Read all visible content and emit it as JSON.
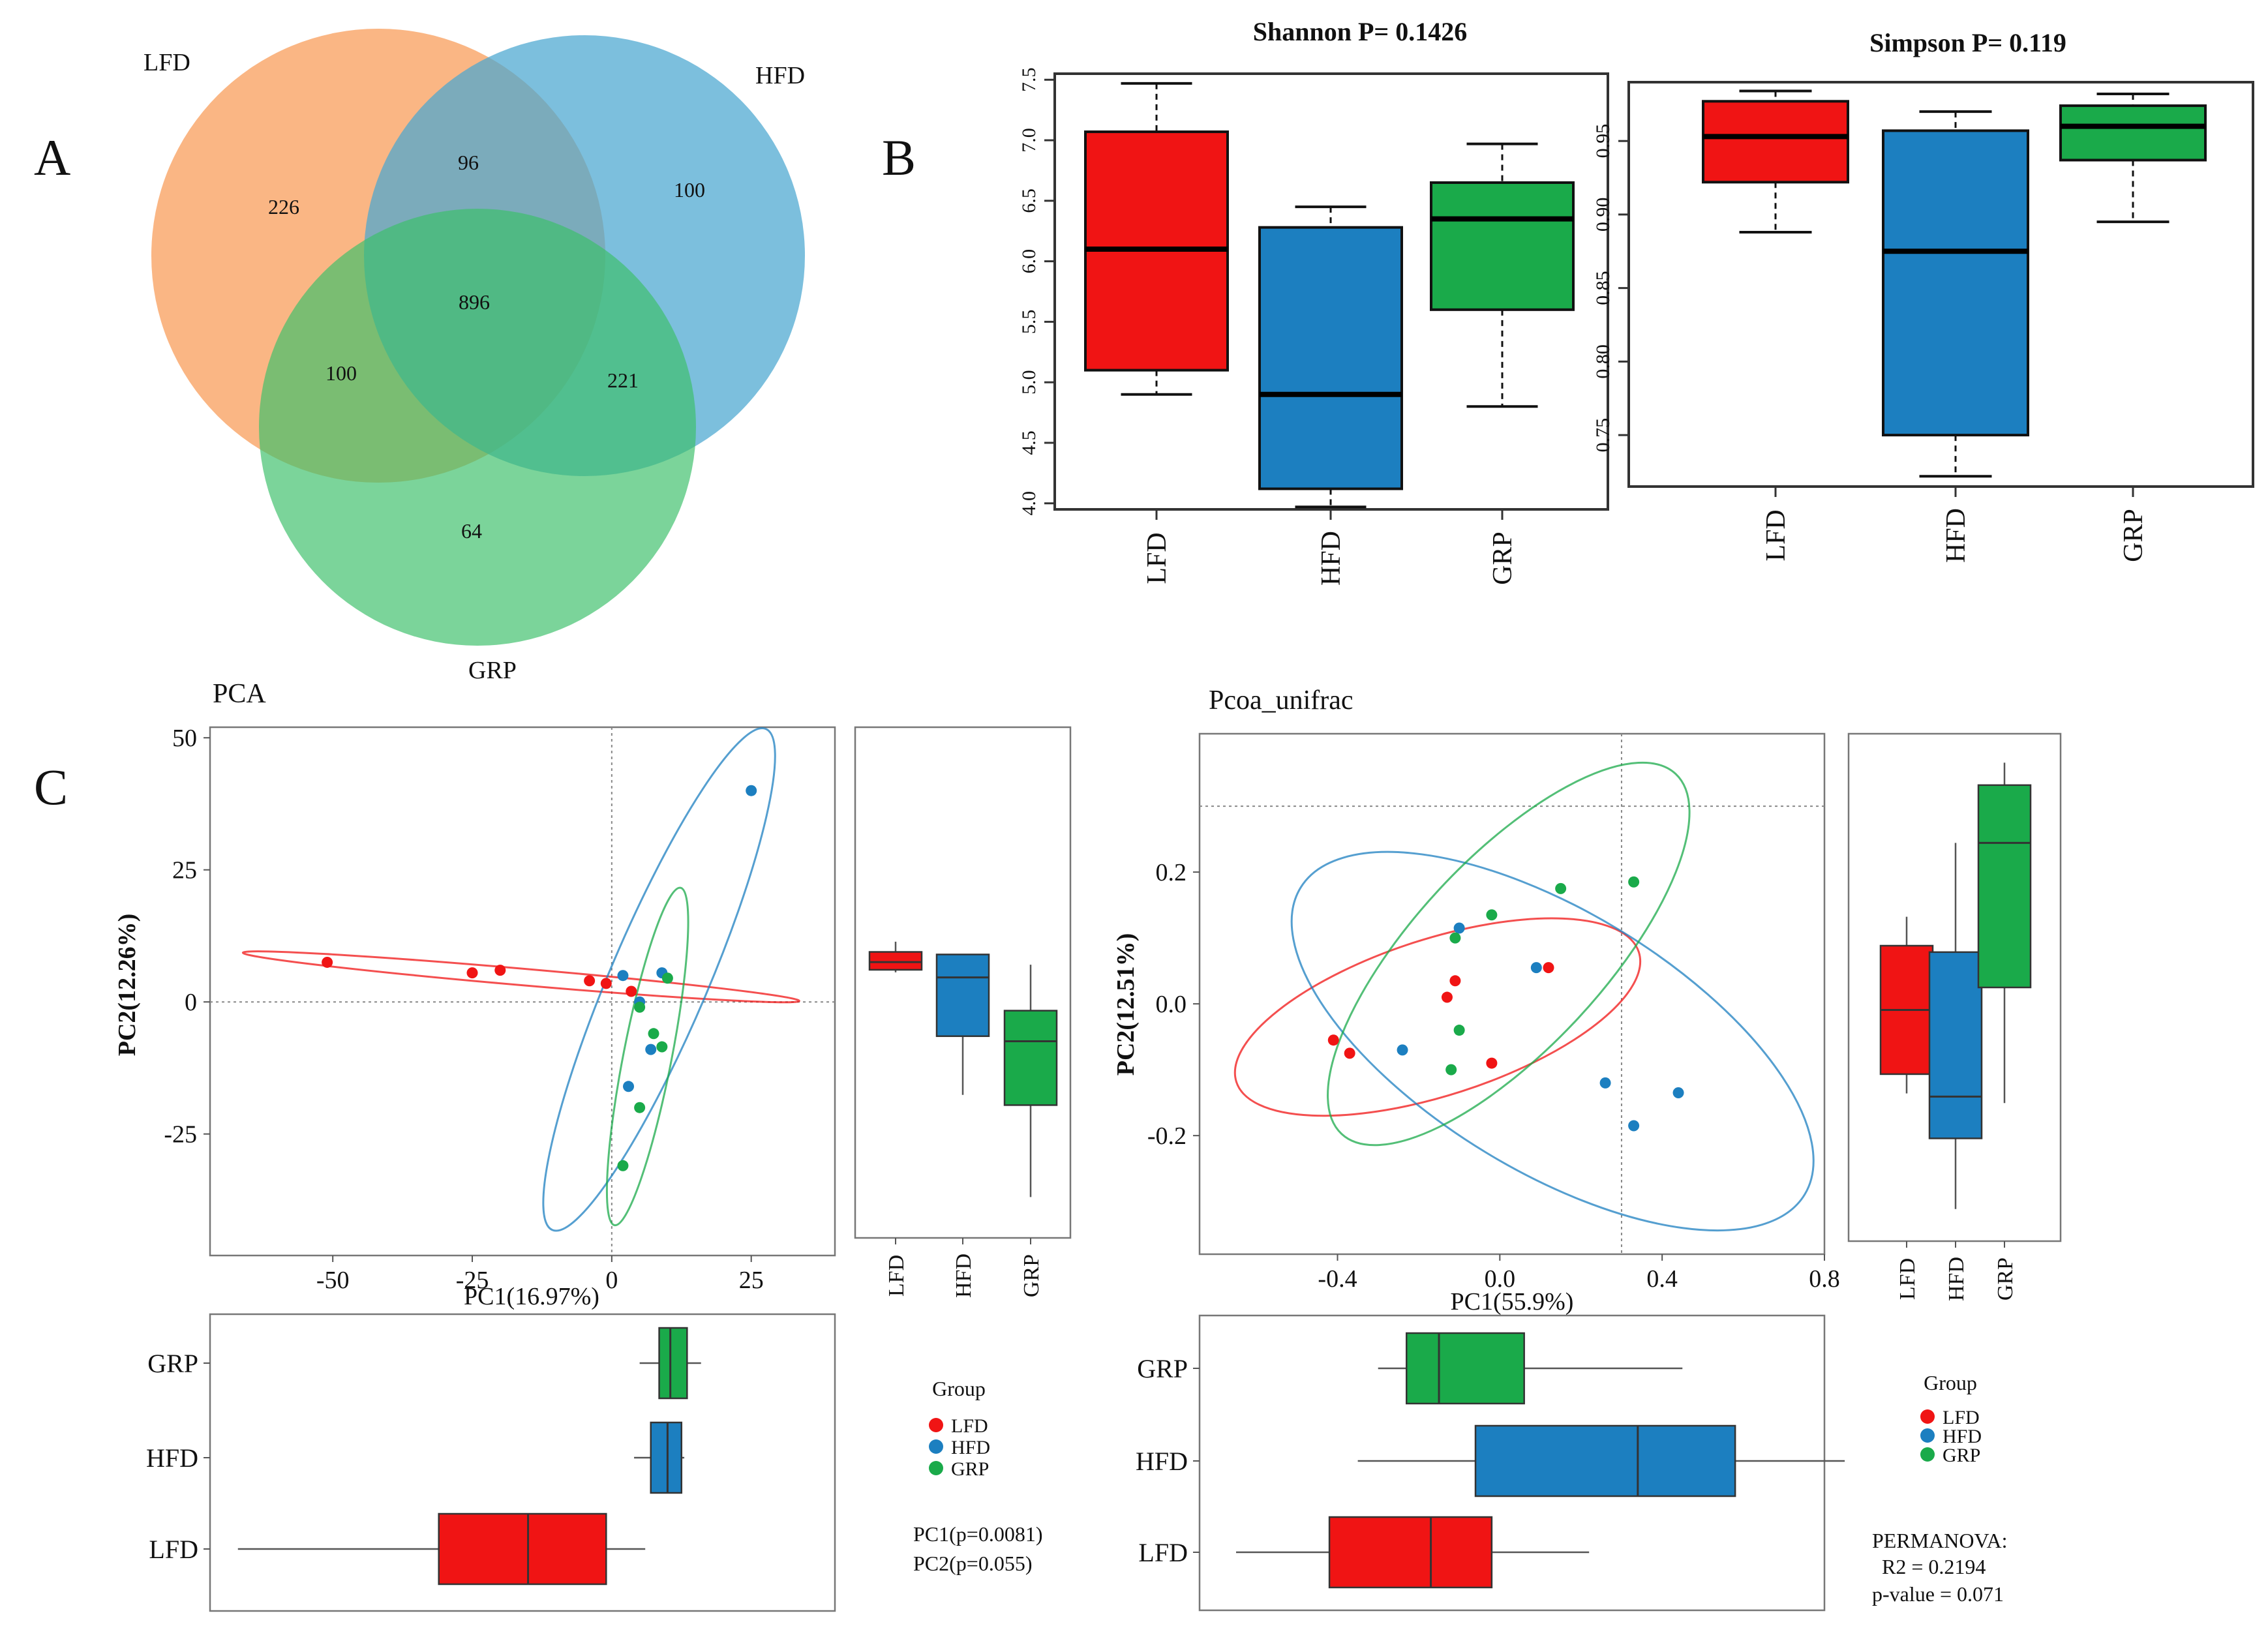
{
  "panel_labels": {
    "A": "A",
    "B": "B",
    "C": "C"
  },
  "colors": {
    "LFD": "#f01414",
    "HFD": "#1c7fc0",
    "GRP": "#1aaa4a",
    "venn_lfd": "#f8a262",
    "venn_hfd": "#4aa6d0",
    "venn_grp": "#3cc06a"
  },
  "chart_data": [
    {
      "type": "venn",
      "sets": [
        "LFD",
        "HFD",
        "GRP"
      ],
      "regions": {
        "LFD_only": "226",
        "HFD_only": "100",
        "GRP_only": "64",
        "LFD_HFD": "96",
        "LFD_GRP": "100",
        "HFD_GRP": "221",
        "all": "896"
      }
    },
    {
      "type": "boxplot",
      "title": "Shannon  P= 0.1426",
      "categories": [
        "LFD",
        "HFD",
        "GRP"
      ],
      "yticks": [
        "4.0",
        "4.5",
        "5.0",
        "5.5",
        "6.0",
        "6.5",
        "7.0",
        "7.5"
      ],
      "ylim": [
        3.95,
        7.55
      ],
      "boxes": [
        {
          "name": "LFD",
          "min": 4.9,
          "q1": 5.1,
          "median": 6.1,
          "q3": 7.07,
          "max": 7.47
        },
        {
          "name": "HFD",
          "min": 3.97,
          "q1": 4.12,
          "median": 4.9,
          "q3": 6.28,
          "max": 6.45
        },
        {
          "name": "GRP",
          "min": 4.8,
          "q1": 5.6,
          "median": 6.35,
          "q3": 6.65,
          "max": 6.97
        }
      ]
    },
    {
      "type": "boxplot",
      "title": "Simpson  P= 0.119",
      "categories": [
        "LFD",
        "HFD",
        "GRP"
      ],
      "yticks": [
        "0.75",
        "0.80",
        "0.85",
        "0.90",
        "0.95"
      ],
      "ylim": [
        0.715,
        0.99
      ],
      "boxes": [
        {
          "name": "LFD",
          "min": 0.888,
          "q1": 0.922,
          "median": 0.953,
          "q3": 0.977,
          "max": 0.984
        },
        {
          "name": "HFD",
          "min": 0.722,
          "q1": 0.75,
          "median": 0.875,
          "q3": 0.957,
          "max": 0.97
        },
        {
          "name": "GRP",
          "min": 0.895,
          "q1": 0.937,
          "median": 0.96,
          "q3": 0.974,
          "max": 0.982
        }
      ]
    },
    {
      "type": "scatter",
      "title": "PCA",
      "xlabel": "PC1(16.97%)",
      "ylabel": "PC2(12.26%)",
      "xticks": [
        "-50",
        "-25",
        "0",
        "25"
      ],
      "yticks": [
        "50",
        "25",
        "0",
        "-25"
      ],
      "xlim": [
        -72,
        40
      ],
      "ylim": [
        -48,
        52
      ],
      "points": [
        {
          "group": "LFD",
          "x": -51,
          "y": 7.5
        },
        {
          "group": "LFD",
          "x": -25,
          "y": 5.5
        },
        {
          "group": "LFD",
          "x": -20,
          "y": 6
        },
        {
          "group": "LFD",
          "x": -4,
          "y": 4
        },
        {
          "group": "LFD",
          "x": -1,
          "y": 3.5
        },
        {
          "group": "LFD",
          "x": 3.5,
          "y": 2
        },
        {
          "group": "HFD",
          "x": 2,
          "y": 5
        },
        {
          "group": "HFD",
          "x": 9,
          "y": 5.5
        },
        {
          "group": "HFD",
          "x": 5,
          "y": 0
        },
        {
          "group": "HFD",
          "x": 7,
          "y": -9
        },
        {
          "group": "HFD",
          "x": 3,
          "y": -16
        },
        {
          "group": "HFD",
          "x": 25,
          "y": 40
        },
        {
          "group": "GRP",
          "x": 10,
          "y": 4.5
        },
        {
          "group": "GRP",
          "x": 5,
          "y": -1
        },
        {
          "group": "GRP",
          "x": 7.5,
          "y": -6
        },
        {
          "group": "GRP",
          "x": 9,
          "y": -8.5
        },
        {
          "group": "GRP",
          "x": 5,
          "y": -20
        },
        {
          "group": "GRP",
          "x": 2,
          "y": -31
        }
      ],
      "pc1_boxes": [
        {
          "name": "LFD",
          "min": -67,
          "q1": -31,
          "median": -15,
          "q3": -1,
          "max": 6
        },
        {
          "name": "HFD",
          "min": 4,
          "q1": 7,
          "median": 10,
          "q3": 12.5,
          "max": 13
        },
        {
          "name": "GRP",
          "min": 5,
          "q1": 8.5,
          "median": 10.5,
          "q3": 13.5,
          "max": 16
        }
      ],
      "pc2_boxes": [
        {
          "name": "LFD",
          "min": 4,
          "q1": 4.5,
          "median": 6,
          "q3": 8,
          "max": 10
        },
        {
          "name": "HFD",
          "min": -20,
          "q1": -8.5,
          "median": 3,
          "q3": 7.5,
          "max": 7.5
        },
        {
          "name": "GRP",
          "min": -40,
          "q1": -22,
          "median": -9.5,
          "q3": -3.5,
          "max": 5.5
        }
      ],
      "box_categories": [
        "LFD",
        "HFD",
        "GRP"
      ],
      "legend": {
        "title": "Group",
        "items": [
          "LFD",
          "HFD",
          "GRP"
        ]
      },
      "annotation": [
        "PC1(p=0.0081)",
        "PC2(p=0.055)"
      ]
    },
    {
      "type": "scatter",
      "title": "Pcoa_unifrac",
      "xlabel": "PC1(55.9%)",
      "ylabel": "PC2(12.51%)",
      "xticks": [
        "-0.4",
        "0.0",
        "0.4",
        "0.8"
      ],
      "yticks": [
        "0.2",
        "0.0",
        "-0.2"
      ],
      "xlim": [
        -0.74,
        0.8
      ],
      "ylim": [
        -0.38,
        0.41
      ],
      "points": [
        {
          "group": "LFD",
          "x": -0.41,
          "y": -0.055
        },
        {
          "group": "LFD",
          "x": -0.37,
          "y": -0.075
        },
        {
          "group": "LFD",
          "x": -0.13,
          "y": 0.01
        },
        {
          "group": "LFD",
          "x": -0.11,
          "y": 0.035
        },
        {
          "group": "LFD",
          "x": -0.02,
          "y": -0.09
        },
        {
          "group": "LFD",
          "x": 0.12,
          "y": 0.055
        },
        {
          "group": "HFD",
          "x": -0.24,
          "y": -0.07
        },
        {
          "group": "HFD",
          "x": -0.1,
          "y": 0.115
        },
        {
          "group": "HFD",
          "x": 0.09,
          "y": 0.055
        },
        {
          "group": "HFD",
          "x": 0.26,
          "y": -0.12
        },
        {
          "group": "HFD",
          "x": 0.33,
          "y": -0.185
        },
        {
          "group": "HFD",
          "x": 0.44,
          "y": -0.135
        },
        {
          "group": "GRP",
          "x": -0.11,
          "y": 0.1
        },
        {
          "group": "GRP",
          "x": -0.02,
          "y": 0.135
        },
        {
          "group": "GRP",
          "x": 0.15,
          "y": 0.175
        },
        {
          "group": "GRP",
          "x": 0.33,
          "y": 0.185
        },
        {
          "group": "GRP",
          "x": -0.1,
          "y": -0.04
        },
        {
          "group": "GRP",
          "x": -0.12,
          "y": -0.1
        }
      ],
      "pc1_boxes": [
        {
          "name": "LFD",
          "min": -0.65,
          "q1": -0.42,
          "median": -0.17,
          "q3": -0.02,
          "max": 0.22
        },
        {
          "name": "HFD",
          "min": -0.35,
          "q1": -0.06,
          "median": 0.34,
          "q3": 0.58,
          "max": 0.85
        },
        {
          "name": "GRP",
          "min": -0.3,
          "q1": -0.23,
          "median": -0.15,
          "q3": 0.06,
          "max": 0.45
        }
      ],
      "pc2_boxes": [
        {
          "name": "LFD",
          "min": -0.15,
          "q1": -0.12,
          "median": -0.02,
          "q3": 0.08,
          "max": 0.125
        },
        {
          "name": "HFD",
          "min": -0.33,
          "q1": -0.22,
          "median": -0.155,
          "q3": 0.07,
          "max": 0.24
        },
        {
          "name": "GRP",
          "min": -0.165,
          "q1": 0.015,
          "median": 0.24,
          "q3": 0.33,
          "max": 0.365
        }
      ],
      "box_categories": [
        "LFD",
        "HFD",
        "GRP"
      ],
      "legend": {
        "title": "Group",
        "items": [
          "LFD",
          "HFD",
          "GRP"
        ]
      },
      "annotation": [
        "PERMANOVA:",
        "R2 = 0.2194",
        "p-value = 0.071"
      ]
    }
  ]
}
